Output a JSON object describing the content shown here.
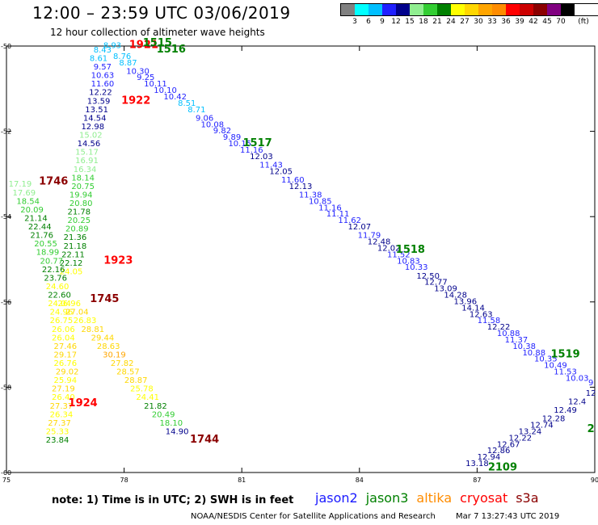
{
  "header": {
    "title": "12:00 – 23:59 UTC 03/06/2019",
    "subtitle": "12 hour collection of altimeter wave heights"
  },
  "legend": {
    "unit": "(ft)",
    "ticks": [
      "3",
      "6",
      "9",
      "12",
      "15",
      "18",
      "21",
      "24",
      "27",
      "30",
      "33",
      "36",
      "39",
      "42",
      "45",
      "70"
    ],
    "colors": [
      "#808080",
      "#00ffff",
      "#00bfff",
      "#1f1fff",
      "#00008b",
      "#90ee90",
      "#32cd32",
      "#008000",
      "#ffff00",
      "#ffd700",
      "#ffa500",
      "#ff8c00",
      "#ff0000",
      "#cc0000",
      "#8b0000",
      "#800080",
      "#000000"
    ]
  },
  "footer": {
    "note": "note:  1) Time is in UTC;  2) SWH is in feet",
    "satellites": [
      {
        "name": "jason2",
        "color": "#1a1aff"
      },
      {
        "name": "jason3",
        "color": "#008000"
      },
      {
        "name": "altika",
        "color": "#ff8c00"
      },
      {
        "name": "cryosat",
        "color": "#ff0000"
      },
      {
        "name": "s3a",
        "color": "#8b0000"
      }
    ],
    "credit": "NOAA/NESDIS Center for Satellite Applications and Research",
    "generated": "Mar  7 13:27:43 UTC 2019"
  },
  "chart_data": {
    "type": "scatter",
    "xlim": [
      75,
      90
    ],
    "ylim": [
      -60,
      -50
    ],
    "x_ticks": [
      75,
      78,
      81,
      84,
      87,
      90
    ],
    "x_tick_labels": [
      "75",
      "78",
      "81",
      "84",
      "87",
      "90"
    ],
    "y_ticks": [
      -50,
      -52,
      -54,
      -56,
      -58,
      -60
    ],
    "y_tick_labels": [
      "-50",
      "-52",
      "-54",
      "-56",
      "-58",
      "-60"
    ],
    "time_labels": [
      {
        "text": "1921",
        "lon": 78.5,
        "lat": -50.05,
        "color": "#ff0000"
      },
      {
        "text": "1515",
        "lon": 78.85,
        "lat": -50.0,
        "color": "#008000"
      },
      {
        "text": "1516",
        "lon": 79.2,
        "lat": -50.15,
        "color": "#008000"
      },
      {
        "text": "1922",
        "lon": 78.3,
        "lat": -51.35,
        "color": "#ff0000"
      },
      {
        "text": "1517",
        "lon": 81.4,
        "lat": -52.35,
        "color": "#008000"
      },
      {
        "text": "1746",
        "lon": 76.2,
        "lat": -53.25,
        "color": "#8b0000"
      },
      {
        "text": "1923",
        "lon": 77.85,
        "lat": -55.1,
        "color": "#ff0000"
      },
      {
        "text": "1518",
        "lon": 85.3,
        "lat": -54.85,
        "color": "#008000"
      },
      {
        "text": "1745",
        "lon": 77.5,
        "lat": -56.0,
        "color": "#8b0000"
      },
      {
        "text": "1519",
        "lon": 89.25,
        "lat": -57.3,
        "color": "#008000"
      },
      {
        "text": "1924",
        "lon": 76.95,
        "lat": -58.45,
        "color": "#ff0000"
      },
      {
        "text": "1744",
        "lon": 80.05,
        "lat": -59.3,
        "color": "#8b0000"
      },
      {
        "text": "2109",
        "lon": 87.65,
        "lat": -59.95,
        "color": "#008000"
      },
      {
        "text": "2",
        "lon": 89.9,
        "lat": -59.05,
        "color": "#008000"
      }
    ],
    "tracks": [
      {
        "name": "jason3",
        "points": [
          {
            "lon": 77.45,
            "lat": -50.15,
            "v": "8.43"
          },
          {
            "lon": 77.7,
            "lat": -50.05,
            "v": "8.93"
          },
          {
            "lon": 77.35,
            "lat": -50.35,
            "v": "8.61"
          },
          {
            "lon": 77.95,
            "lat": -50.3,
            "v": "8.76"
          },
          {
            "lon": 78.1,
            "lat": -50.45,
            "v": "8.87"
          },
          {
            "lon": 77.45,
            "lat": -50.55,
            "v": "9.57"
          },
          {
            "lon": 78.35,
            "lat": -50.65,
            "v": "10.30"
          },
          {
            "lon": 77.45,
            "lat": -50.75,
            "v": "10.63"
          },
          {
            "lon": 78.55,
            "lat": -50.8,
            "v": "9.25"
          },
          {
            "lon": 77.45,
            "lat": -50.95,
            "v": "11.60"
          },
          {
            "lon": 78.8,
            "lat": -50.95,
            "v": "10.11"
          },
          {
            "lon": 79.05,
            "lat": -51.1,
            "v": "10.10"
          },
          {
            "lon": 77.4,
            "lat": -51.15,
            "v": "12.22"
          },
          {
            "lon": 79.3,
            "lat": -51.25,
            "v": "10.42"
          },
          {
            "lon": 77.35,
            "lat": -51.35,
            "v": "13.59"
          },
          {
            "lon": 79.6,
            "lat": -51.4,
            "v": "8.51"
          },
          {
            "lon": 77.3,
            "lat": -51.55,
            "v": "13.51"
          },
          {
            "lon": 79.85,
            "lat": -51.55,
            "v": "8.71"
          },
          {
            "lon": 77.25,
            "lat": -51.75,
            "v": "14.54"
          },
          {
            "lon": 80.05,
            "lat": -51.75,
            "v": "9.06"
          },
          {
            "lon": 77.2,
            "lat": -51.95,
            "v": "12.98"
          },
          {
            "lon": 80.25,
            "lat": -51.9,
            "v": "10.08"
          },
          {
            "lon": 80.5,
            "lat": -52.05,
            "v": "9.82"
          },
          {
            "lon": 77.15,
            "lat": -52.15,
            "v": "15.02"
          },
          {
            "lon": 80.75,
            "lat": -52.2,
            "v": "9.89"
          },
          {
            "lon": 77.1,
            "lat": -52.35,
            "v": "14.56"
          },
          {
            "lon": 80.95,
            "lat": -52.35,
            "v": "10.15"
          },
          {
            "lon": 81.25,
            "lat": -52.5,
            "v": "11.16"
          },
          {
            "lon": 77.05,
            "lat": -52.55,
            "v": "15.17"
          },
          {
            "lon": 81.5,
            "lat": -52.65,
            "v": "12.03"
          },
          {
            "lon": 77.05,
            "lat": -52.75,
            "v": "16.91"
          },
          {
            "lon": 81.75,
            "lat": -52.85,
            "v": "11.43"
          },
          {
            "lon": 77.0,
            "lat": -52.95,
            "v": "16.34"
          },
          {
            "lon": 82.0,
            "lat": -53.0,
            "v": "12.05"
          },
          {
            "lon": 82.3,
            "lat": -53.2,
            "v": "11.60"
          },
          {
            "lon": 76.95,
            "lat": -53.15,
            "v": "18.14"
          },
          {
            "lon": 82.5,
            "lat": -53.35,
            "v": "12.13"
          },
          {
            "lon": 76.95,
            "lat": -53.35,
            "v": "20.75"
          },
          {
            "lon": 82.75,
            "lat": -53.55,
            "v": "11.38"
          },
          {
            "lon": 76.9,
            "lat": -53.55,
            "v": "19.94"
          },
          {
            "lon": 83.0,
            "lat": -53.7,
            "v": "10.85"
          },
          {
            "lon": 76.9,
            "lat": -53.75,
            "v": "20.80"
          },
          {
            "lon": 83.25,
            "lat": -53.85,
            "v": "11.16"
          },
          {
            "lon": 76.85,
            "lat": -53.95,
            "v": "21.78"
          },
          {
            "lon": 83.45,
            "lat": -54.0,
            "v": "11.11"
          },
          {
            "lon": 83.75,
            "lat": -54.15,
            "v": "11.62"
          },
          {
            "lon": 76.85,
            "lat": -54.15,
            "v": "20.25"
          },
          {
            "lon": 84.0,
            "lat": -54.3,
            "v": "12.07"
          },
          {
            "lon": 76.8,
            "lat": -54.35,
            "v": "20.89"
          },
          {
            "lon": 84.25,
            "lat": -54.5,
            "v": "11.79"
          },
          {
            "lon": 76.75,
            "lat": -54.55,
            "v": "21.36"
          },
          {
            "lon": 84.5,
            "lat": -54.65,
            "v": "12.48"
          },
          {
            "lon": 76.75,
            "lat": -54.75,
            "v": "21.18"
          },
          {
            "lon": 84.75,
            "lat": -54.8,
            "v": "12.02"
          },
          {
            "lon": 85.0,
            "lat": -54.95,
            "v": "11.52"
          },
          {
            "lon": 76.7,
            "lat": -54.95,
            "v": "22.11"
          },
          {
            "lon": 85.25,
            "lat": -55.1,
            "v": "10.83"
          },
          {
            "lon": 76.65,
            "lat": -55.15,
            "v": "22.12"
          },
          {
            "lon": 85.45,
            "lat": -55.25,
            "v": "10.33"
          },
          {
            "lon": 76.65,
            "lat": -55.35,
            "v": "24.05"
          },
          {
            "lon": 85.75,
            "lat": -55.45,
            "v": "12.50"
          },
          {
            "lon": 85.95,
            "lat": -55.6,
            "v": "12.77"
          },
          {
            "lon": 86.2,
            "lat": -55.75,
            "v": "13.09"
          },
          {
            "lon": 86.45,
            "lat": -55.9,
            "v": "14.28"
          },
          {
            "lon": 86.7,
            "lat": -56.05,
            "v": "13.96"
          },
          {
            "lon": 86.9,
            "lat": -56.2,
            "v": "14.14"
          },
          {
            "lon": 87.1,
            "lat": -56.35,
            "v": "12.63"
          },
          {
            "lon": 87.3,
            "lat": -56.5,
            "v": "11.58"
          },
          {
            "lon": 87.55,
            "lat": -56.65,
            "v": "12.22"
          },
          {
            "lon": 87.8,
            "lat": -56.8,
            "v": "10.88"
          },
          {
            "lon": 88.0,
            "lat": -56.95,
            "v": "11.37"
          },
          {
            "lon": 88.2,
            "lat": -57.1,
            "v": "10.38"
          },
          {
            "lon": 88.45,
            "lat": -57.25,
            "v": "10.88"
          },
          {
            "lon": 88.75,
            "lat": -57.4,
            "v": "10.35"
          },
          {
            "lon": 89.0,
            "lat": -57.55,
            "v": "10.49"
          },
          {
            "lon": 89.25,
            "lat": -57.7,
            "v": "11.53"
          },
          {
            "lon": 89.55,
            "lat": -57.85,
            "v": "10.03"
          },
          {
            "lon": 89.9,
            "lat": -57.95,
            "v": "9"
          }
        ]
      },
      {
        "name": "cryosat",
        "points": [
          {
            "lon": 75.35,
            "lat": -53.3,
            "v": "17.19"
          },
          {
            "lon": 75.45,
            "lat": -53.5,
            "v": "17.69"
          },
          {
            "lon": 75.55,
            "lat": -53.7,
            "v": "18.54"
          },
          {
            "lon": 75.65,
            "lat": -53.9,
            "v": "20.09"
          },
          {
            "lon": 75.75,
            "lat": -54.1,
            "v": "21.14"
          },
          {
            "lon": 75.85,
            "lat": -54.3,
            "v": "22.44"
          },
          {
            "lon": 75.9,
            "lat": -54.5,
            "v": "21.76"
          },
          {
            "lon": 76.0,
            "lat": -54.7,
            "v": "20.55"
          },
          {
            "lon": 76.05,
            "lat": -54.9,
            "v": "18.99"
          },
          {
            "lon": 76.15,
            "lat": -55.1,
            "v": "20.77"
          },
          {
            "lon": 76.2,
            "lat": -55.3,
            "v": "22.16"
          },
          {
            "lon": 76.25,
            "lat": -55.5,
            "v": "23.76"
          },
          {
            "lon": 76.3,
            "lat": -55.7,
            "v": "24.60"
          },
          {
            "lon": 76.35,
            "lat": -55.9,
            "v": "22.60"
          },
          {
            "lon": 76.35,
            "lat": -56.1,
            "v": "24.04"
          },
          {
            "lon": 76.6,
            "lat": -56.1,
            "v": "26.96"
          },
          {
            "lon": 76.4,
            "lat": -56.3,
            "v": "24.96"
          },
          {
            "lon": 76.8,
            "lat": -56.3,
            "v": "27.04"
          },
          {
            "lon": 76.4,
            "lat": -56.5,
            "v": "26.75"
          },
          {
            "lon": 77.0,
            "lat": -56.5,
            "v": "26.83"
          },
          {
            "lon": 76.45,
            "lat": -56.7,
            "v": "26.06"
          },
          {
            "lon": 77.2,
            "lat": -56.7,
            "v": "28.81"
          },
          {
            "lon": 76.45,
            "lat": -56.9,
            "v": "26.04"
          },
          {
            "lon": 77.45,
            "lat": -56.9,
            "v": "29.44"
          },
          {
            "lon": 76.5,
            "lat": -57.1,
            "v": "27.46"
          },
          {
            "lon": 77.6,
            "lat": -57.1,
            "v": "28.63"
          },
          {
            "lon": 76.5,
            "lat": -57.3,
            "v": "29.17"
          },
          {
            "lon": 77.75,
            "lat": -57.3,
            "v": "30.19"
          },
          {
            "lon": 76.5,
            "lat": -57.5,
            "v": "26.76"
          },
          {
            "lon": 77.95,
            "lat": -57.5,
            "v": "27.82"
          },
          {
            "lon": 76.55,
            "lat": -57.7,
            "v": "29.02"
          },
          {
            "lon": 78.1,
            "lat": -57.7,
            "v": "28.57"
          },
          {
            "lon": 76.5,
            "lat": -57.9,
            "v": "25.94"
          },
          {
            "lon": 78.3,
            "lat": -57.9,
            "v": "28.87"
          },
          {
            "lon": 76.45,
            "lat": -58.1,
            "v": "27.19"
          },
          {
            "lon": 78.45,
            "lat": -58.1,
            "v": "25.78"
          },
          {
            "lon": 76.45,
            "lat": -58.3,
            "v": "26.40"
          },
          {
            "lon": 78.6,
            "lat": -58.3,
            "v": "24.41"
          },
          {
            "lon": 76.4,
            "lat": -58.5,
            "v": "27.37"
          },
          {
            "lon": 78.8,
            "lat": -58.5,
            "v": "21.82"
          },
          {
            "lon": 76.4,
            "lat": -58.7,
            "v": "26.34"
          },
          {
            "lon": 79.0,
            "lat": -58.7,
            "v": "20.49"
          },
          {
            "lon": 76.35,
            "lat": -58.9,
            "v": "27.37"
          },
          {
            "lon": 79.2,
            "lat": -58.9,
            "v": "18.10"
          },
          {
            "lon": 76.3,
            "lat": -59.1,
            "v": "25.33"
          },
          {
            "lon": 79.35,
            "lat": -59.1,
            "v": "14.90"
          },
          {
            "lon": 76.3,
            "lat": -59.3,
            "v": "23.84"
          }
        ]
      },
      {
        "name": "jason3-2109",
        "points": [
          {
            "lon": 87.0,
            "lat": -59.85,
            "v": "13.18"
          },
          {
            "lon": 87.3,
            "lat": -59.7,
            "v": "12.94"
          },
          {
            "lon": 87.55,
            "lat": -59.55,
            "v": "12.86"
          },
          {
            "lon": 87.8,
            "lat": -59.4,
            "v": "12.67"
          },
          {
            "lon": 88.1,
            "lat": -59.25,
            "v": "12.22"
          },
          {
            "lon": 88.35,
            "lat": -59.1,
            "v": "13.24"
          },
          {
            "lon": 88.65,
            "lat": -58.95,
            "v": "12.74"
          },
          {
            "lon": 88.95,
            "lat": -58.8,
            "v": "12.28"
          },
          {
            "lon": 89.25,
            "lat": -58.6,
            "v": "12.49"
          },
          {
            "lon": 89.55,
            "lat": -58.4,
            "v": "12.4"
          },
          {
            "lon": 89.9,
            "lat": -58.2,
            "v": "12"
          }
        ]
      }
    ]
  }
}
